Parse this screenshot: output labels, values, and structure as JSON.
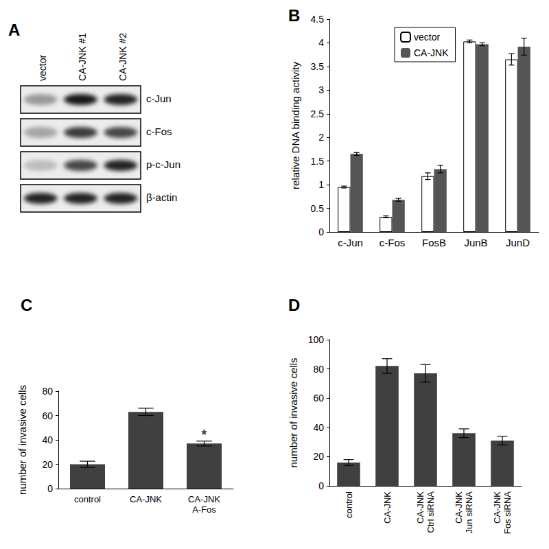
{
  "blot": {
    "panel": "A",
    "lanes": [
      "vector",
      "CA-JNK #1",
      "CA-JNK #2"
    ],
    "rows": [
      {
        "label": "c-Jun",
        "band_intensity": [
          0.35,
          0.9,
          0.85
        ]
      },
      {
        "label": "c-Fos",
        "band_intensity": [
          0.3,
          0.75,
          0.7
        ]
      },
      {
        "label": "p-c-Jun",
        "band_intensity": [
          0.2,
          0.7,
          0.85
        ]
      },
      {
        "label": "β-actin",
        "band_intensity": [
          0.85,
          0.85,
          0.85
        ]
      }
    ]
  },
  "chart_data": [
    {
      "panel": "B",
      "type": "bar",
      "y_label": "relative DNA binding activity",
      "categories": [
        "c-Jun",
        "c-Fos",
        "FosB",
        "JunB",
        "JunD"
      ],
      "series": [
        {
          "name": "vector",
          "color": "#ffffff",
          "values": [
            0.95,
            0.32,
            1.18,
            4.03,
            3.65
          ],
          "errors": [
            0.02,
            0.02,
            0.07,
            0.03,
            0.12
          ]
        },
        {
          "name": "CA-JNK",
          "color": "#555555",
          "values": [
            1.65,
            0.68,
            1.33,
            3.97,
            3.92
          ],
          "errors": [
            0.03,
            0.03,
            0.08,
            0.03,
            0.18
          ]
        }
      ],
      "ylim": [
        0,
        4.5
      ],
      "yticks": [
        0,
        0.5,
        1,
        1.5,
        2,
        2.5,
        3,
        3.5,
        4,
        4.5
      ],
      "grid": false,
      "legend": "upper left"
    },
    {
      "panel": "C",
      "type": "bar",
      "y_label": "number of invasive cells",
      "categories": [
        "control",
        "CA-JNK",
        "CA-JNK\nA-Fos"
      ],
      "values": [
        20,
        63,
        37
      ],
      "errors": [
        2.5,
        3,
        2
      ],
      "color": "#404040",
      "ylim": [
        0,
        80
      ],
      "yticks": [
        0,
        20,
        40,
        60,
        80
      ],
      "grid": false,
      "annotations": [
        {
          "text": "*",
          "category": "CA-JNK\nA-Fos"
        }
      ]
    },
    {
      "panel": "D",
      "type": "bar",
      "y_label": "number of invasive cells",
      "categories": [
        "control",
        "CA-JNK",
        "CA-JNK\nCtrl siRNA",
        "CA-JNK\nJun siRNA",
        "CA-JNK\nFos siRNA"
      ],
      "values": [
        16,
        82,
        77,
        36,
        31
      ],
      "errors": [
        2,
        5,
        6,
        3,
        3
      ],
      "color": "#404040",
      "ylim": [
        0,
        100
      ],
      "yticks": [
        0,
        20,
        40,
        60,
        80,
        100
      ],
      "grid": false
    }
  ]
}
